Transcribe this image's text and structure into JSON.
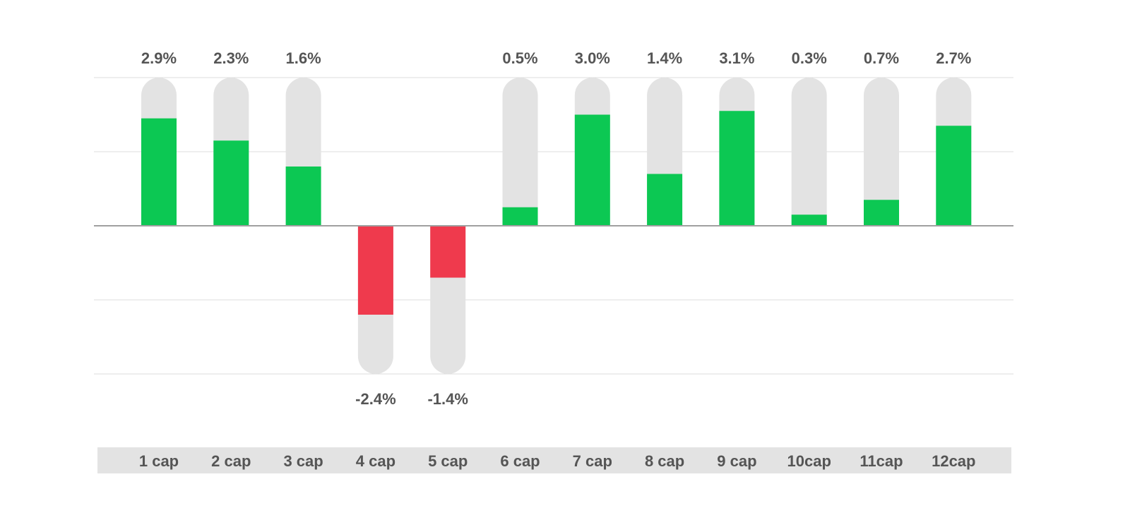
{
  "chart_data": {
    "type": "bar",
    "categories": [
      "1 cap",
      "2 cap",
      "3 cap",
      "4 cap",
      "5 cap",
      "6 cap",
      "7 cap",
      "8 cap",
      "9 cap",
      "10cap",
      "11cap",
      "12cap"
    ],
    "values": [
      2.9,
      2.3,
      1.6,
      -2.4,
      -1.4,
      0.5,
      3.0,
      1.4,
      3.1,
      0.3,
      0.7,
      2.7
    ],
    "labels": [
      "2.9%",
      "2.3%",
      "1.6%",
      "-2.4%",
      "-1.4%",
      "0.5%",
      "3.0%",
      "1.4%",
      "3.1%",
      "0.3%",
      "0.7%",
      "2.7%"
    ],
    "ylim": [
      -4,
      4
    ],
    "grid": true,
    "colors": {
      "positive": "#0cc853",
      "negative": "#ef3a4d",
      "track": "#e3e3e3",
      "axis_band": "#e3e3e3",
      "gridline": "#dddddd",
      "zero_line": "#a0a0a0",
      "label_text": "#555555"
    }
  }
}
